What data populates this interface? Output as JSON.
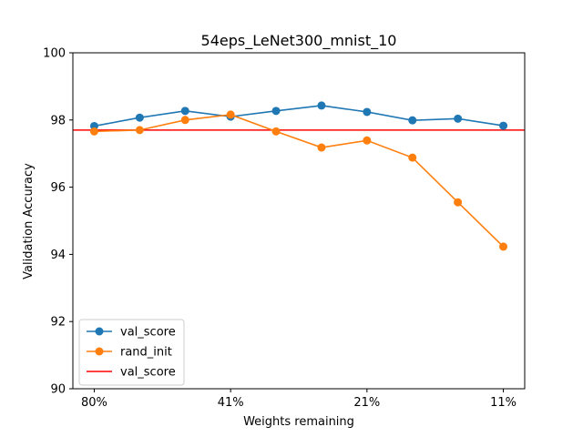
{
  "chart_data": {
    "type": "line",
    "title": "54eps_LeNet300_mnist_10",
    "xlabel": "Weights remaining",
    "ylabel": "Validation Accuracy",
    "ylim": [
      90,
      100
    ],
    "y_ticks": [
      90,
      92,
      94,
      96,
      98,
      100
    ],
    "x_positions": [
      0,
      1,
      2,
      3,
      4,
      5,
      6,
      7,
      8,
      9
    ],
    "x_tick_positions": [
      0,
      3,
      6,
      9
    ],
    "x_tick_labels": [
      "80%",
      "41%",
      "21%",
      "11%"
    ],
    "series": [
      {
        "name": "val_score",
        "color": "#1f77b4",
        "marker": "circle",
        "values": [
          97.82,
          98.07,
          98.27,
          98.1,
          98.27,
          98.43,
          98.24,
          97.99,
          98.04,
          97.83
        ]
      },
      {
        "name": "rand_init",
        "color": "#ff7f0e",
        "marker": "circle",
        "values": [
          97.66,
          97.7,
          98.0,
          98.16,
          97.66,
          97.18,
          97.39,
          96.88,
          95.55,
          94.23
        ]
      }
    ],
    "hlines": [
      {
        "name": "val_score",
        "color": "#ff0000",
        "y": 97.7
      }
    ],
    "legend": {
      "placement": "lower-left"
    },
    "grid": false
  }
}
